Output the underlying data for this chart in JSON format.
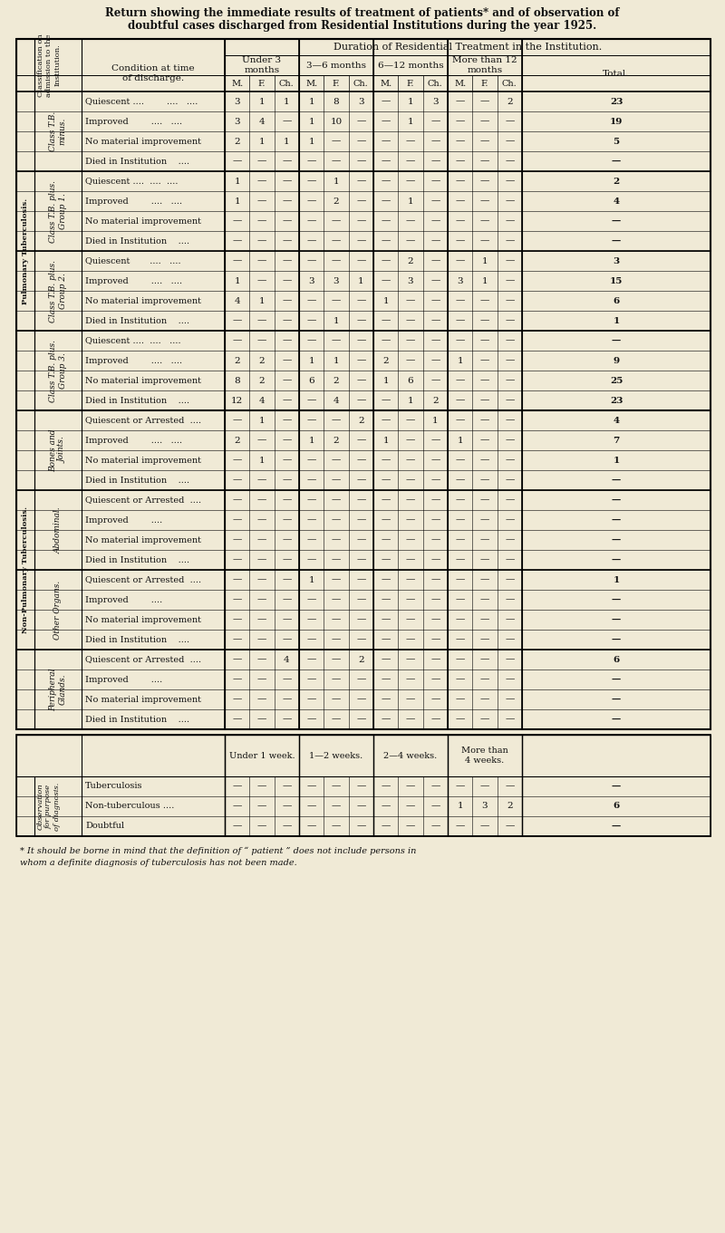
{
  "title_line1": "Return showing the immediate results of treatment of patients* and of observation of",
  "title_line2": "doubtful cases discharged from Residential Institutions during the year 1925.",
  "bg_color": "#f0ead6",
  "figsize": [
    8.0,
    13.61
  ],
  "dpi": 100,
  "sections": [
    {
      "group_label": "Class T.B.\nminus.",
      "rows": [
        {
          "condition": "Quiescent ....        ....   ....",
          "u3_M": "3",
          "u3_F": "1",
          "u3_Ch": "1",
          "r36_M": "1",
          "r36_F": "8",
          "r36_Ch": "3",
          "r612_M": "—",
          "r612_F": "1",
          "r612_Ch": "3",
          "m12_M": "—",
          "m12_F": "—",
          "m12_Ch": "2",
          "total": "23"
        },
        {
          "condition": "Improved        ....   ....",
          "u3_M": "3",
          "u3_F": "4",
          "u3_Ch": "—",
          "r36_M": "1",
          "r36_F": "10",
          "r36_Ch": "—",
          "r612_M": "—",
          "r612_F": "1",
          "r612_Ch": "—",
          "m12_M": "—",
          "m12_F": "—",
          "m12_Ch": "—",
          "total": "19"
        },
        {
          "condition": "No material improvement",
          "u3_M": "2",
          "u3_F": "1",
          "u3_Ch": "1",
          "r36_M": "1",
          "r36_F": "—",
          "r36_Ch": "—",
          "r612_M": "—",
          "r612_F": "—",
          "r612_Ch": "—",
          "m12_M": "—",
          "m12_F": "—",
          "m12_Ch": "—",
          "total": "5"
        },
        {
          "condition": "Died in Institution    ....",
          "u3_M": "—",
          "u3_F": "—",
          "u3_Ch": "—",
          "r36_M": "—",
          "r36_F": "—",
          "r36_Ch": "—",
          "r612_M": "—",
          "r612_F": "—",
          "r612_Ch": "—",
          "m12_M": "—",
          "m12_F": "—",
          "m12_Ch": "—",
          "total": "—"
        }
      ]
    },
    {
      "group_label": "Class T.B. plus.\nGroup 1.",
      "rows": [
        {
          "condition": "Quiescent ....  ....  ....",
          "u3_M": "1",
          "u3_F": "—",
          "u3_Ch": "—",
          "r36_M": "—",
          "r36_F": "1",
          "r36_Ch": "—",
          "r612_M": "—",
          "r612_F": "—",
          "r612_Ch": "—",
          "m12_M": "—",
          "m12_F": "—",
          "m12_Ch": "—",
          "total": "2"
        },
        {
          "condition": "Improved        ....   ....",
          "u3_M": "1",
          "u3_F": "—",
          "u3_Ch": "—",
          "r36_M": "—",
          "r36_F": "2",
          "r36_Ch": "—",
          "r612_M": "—",
          "r612_F": "1",
          "r612_Ch": "—",
          "m12_M": "—",
          "m12_F": "—",
          "m12_Ch": "—",
          "total": "4"
        },
        {
          "condition": "No material improvement",
          "u3_M": "—",
          "u3_F": "—",
          "u3_Ch": "—",
          "r36_M": "—",
          "r36_F": "—",
          "r36_Ch": "—",
          "r612_M": "—",
          "r612_F": "—",
          "r612_Ch": "—",
          "m12_M": "—",
          "m12_F": "—",
          "m12_Ch": "—",
          "total": "—"
        },
        {
          "condition": "Died in Institution    ....",
          "u3_M": "—",
          "u3_F": "—",
          "u3_Ch": "—",
          "r36_M": "—",
          "r36_F": "—",
          "r36_Ch": "—",
          "r612_M": "—",
          "r612_F": "—",
          "r612_Ch": "—",
          "m12_M": "—",
          "m12_F": "—",
          "m12_Ch": "—",
          "total": "—"
        }
      ]
    },
    {
      "group_label": "Class T.B. plus.\nGroup 2.",
      "rows": [
        {
          "condition": "Quiescent       ....   ....",
          "u3_M": "—",
          "u3_F": "—",
          "u3_Ch": "—",
          "r36_M": "—",
          "r36_F": "—",
          "r36_Ch": "—",
          "r612_M": "—",
          "r612_F": "2",
          "r612_Ch": "—",
          "m12_M": "—",
          "m12_F": "1",
          "m12_Ch": "—",
          "total": "3"
        },
        {
          "condition": "Improved        ....   ....",
          "u3_M": "1",
          "u3_F": "—",
          "u3_Ch": "—",
          "r36_M": "3",
          "r36_F": "3",
          "r36_Ch": "1",
          "r612_M": "—",
          "r612_F": "3",
          "r612_Ch": "—",
          "m12_M": "3",
          "m12_F": "1",
          "m12_Ch": "—",
          "total": "15"
        },
        {
          "condition": "No material improvement",
          "u3_M": "4",
          "u3_F": "1",
          "u3_Ch": "—",
          "r36_M": "—",
          "r36_F": "—",
          "r36_Ch": "—",
          "r612_M": "1",
          "r612_F": "—",
          "r612_Ch": "—",
          "m12_M": "—",
          "m12_F": "—",
          "m12_Ch": "—",
          "total": "6"
        },
        {
          "condition": "Died in Institution    ....",
          "u3_M": "—",
          "u3_F": "—",
          "u3_Ch": "—",
          "r36_M": "—",
          "r36_F": "1",
          "r36_Ch": "—",
          "r612_M": "—",
          "r612_F": "—",
          "r612_Ch": "—",
          "m12_M": "—",
          "m12_F": "—",
          "m12_Ch": "—",
          "total": "1"
        }
      ]
    },
    {
      "group_label": "Class T.B. plus.\nGroup 3.",
      "rows": [
        {
          "condition": "Quiescent ....  ....   ....",
          "u3_M": "—",
          "u3_F": "—",
          "u3_Ch": "—",
          "r36_M": "—",
          "r36_F": "—",
          "r36_Ch": "—",
          "r612_M": "—",
          "r612_F": "—",
          "r612_Ch": "—",
          "m12_M": "—",
          "m12_F": "—",
          "m12_Ch": "—",
          "total": "—"
        },
        {
          "condition": "Improved        ....   ....",
          "u3_M": "2",
          "u3_F": "2",
          "u3_Ch": "—",
          "r36_M": "1",
          "r36_F": "1",
          "r36_Ch": "—",
          "r612_M": "2",
          "r612_F": "—",
          "r612_Ch": "—",
          "m12_M": "1",
          "m12_F": "—",
          "m12_Ch": "—",
          "total": "9"
        },
        {
          "condition": "No material improvement",
          "u3_M": "8",
          "u3_F": "2",
          "u3_Ch": "—",
          "r36_M": "6",
          "r36_F": "2",
          "r36_Ch": "—",
          "r612_M": "1",
          "r612_F": "6",
          "r612_Ch": "—",
          "m12_M": "—",
          "m12_F": "—",
          "m12_Ch": "—",
          "total": "25"
        },
        {
          "condition": "Died in Institution    ....",
          "u3_M": "12",
          "u3_F": "4",
          "u3_Ch": "—",
          "r36_M": "—",
          "r36_F": "4",
          "r36_Ch": "—",
          "r612_M": "—",
          "r612_F": "1",
          "r612_Ch": "2",
          "m12_M": "—",
          "m12_F": "—",
          "m12_Ch": "—",
          "total": "23"
        }
      ]
    },
    {
      "group_label": "Bones and\nJoints.",
      "rows": [
        {
          "condition": "Quiescent or Arrested  ....",
          "u3_M": "—",
          "u3_F": "1",
          "u3_Ch": "—",
          "r36_M": "—",
          "r36_F": "—",
          "r36_Ch": "2",
          "r612_M": "—",
          "r612_F": "—",
          "r612_Ch": "1",
          "m12_M": "—",
          "m12_F": "—",
          "m12_Ch": "—",
          "total": "4"
        },
        {
          "condition": "Improved        ....   ....",
          "u3_M": "2",
          "u3_F": "—",
          "u3_Ch": "—",
          "r36_M": "1",
          "r36_F": "2",
          "r36_Ch": "—",
          "r612_M": "1",
          "r612_F": "—",
          "r612_Ch": "—",
          "m12_M": "1",
          "m12_F": "—",
          "m12_Ch": "—",
          "total": "7"
        },
        {
          "condition": "No material improvement",
          "u3_M": "—",
          "u3_F": "1",
          "u3_Ch": "—",
          "r36_M": "—",
          "r36_F": "—",
          "r36_Ch": "—",
          "r612_M": "—",
          "r612_F": "—",
          "r612_Ch": "—",
          "m12_M": "—",
          "m12_F": "—",
          "m12_Ch": "—",
          "total": "1"
        },
        {
          "condition": "Died in Institution    ....",
          "u3_M": "—",
          "u3_F": "—",
          "u3_Ch": "—",
          "r36_M": "—",
          "r36_F": "—",
          "r36_Ch": "—",
          "r612_M": "—",
          "r612_F": "—",
          "r612_Ch": "—",
          "m12_M": "—",
          "m12_F": "—",
          "m12_Ch": "—",
          "total": "—"
        }
      ]
    },
    {
      "group_label": "Abdominal.",
      "rows": [
        {
          "condition": "Quiescent or Arrested  ....",
          "u3_M": "—",
          "u3_F": "—",
          "u3_Ch": "—",
          "r36_M": "—",
          "r36_F": "—",
          "r36_Ch": "—",
          "r612_M": "—",
          "r612_F": "—",
          "r612_Ch": "—",
          "m12_M": "—",
          "m12_F": "—",
          "m12_Ch": "—",
          "total": "—"
        },
        {
          "condition": "Improved        ....",
          "u3_M": "—",
          "u3_F": "—",
          "u3_Ch": "—",
          "r36_M": "—",
          "r36_F": "—",
          "r36_Ch": "—",
          "r612_M": "—",
          "r612_F": "—",
          "r612_Ch": "—",
          "m12_M": "—",
          "m12_F": "—",
          "m12_Ch": "—",
          "total": "—"
        },
        {
          "condition": "No material improvement",
          "u3_M": "—",
          "u3_F": "—",
          "u3_Ch": "—",
          "r36_M": "—",
          "r36_F": "—",
          "r36_Ch": "—",
          "r612_M": "—",
          "r612_F": "—",
          "r612_Ch": "—",
          "m12_M": "—",
          "m12_F": "—",
          "m12_Ch": "—",
          "total": "—"
        },
        {
          "condition": "Died in Institution    ....",
          "u3_M": "—",
          "u3_F": "—",
          "u3_Ch": "—",
          "r36_M": "—",
          "r36_F": "—",
          "r36_Ch": "—",
          "r612_M": "—",
          "r612_F": "—",
          "r612_Ch": "—",
          "m12_M": "—",
          "m12_F": "—",
          "m12_Ch": "—",
          "total": "—"
        }
      ]
    },
    {
      "group_label": "Other Organs.",
      "rows": [
        {
          "condition": "Quiescent or Arrested  ....",
          "u3_M": "—",
          "u3_F": "—",
          "u3_Ch": "—",
          "r36_M": "1",
          "r36_F": "—",
          "r36_Ch": "—",
          "r612_M": "—",
          "r612_F": "—",
          "r612_Ch": "—",
          "m12_M": "—",
          "m12_F": "—",
          "m12_Ch": "—",
          "total": "1"
        },
        {
          "condition": "Improved        ....",
          "u3_M": "—",
          "u3_F": "—",
          "u3_Ch": "—",
          "r36_M": "—",
          "r36_F": "—",
          "r36_Ch": "—",
          "r612_M": "—",
          "r612_F": "—",
          "r612_Ch": "—",
          "m12_M": "—",
          "m12_F": "—",
          "m12_Ch": "—",
          "total": "—"
        },
        {
          "condition": "No material improvement",
          "u3_M": "—",
          "u3_F": "—",
          "u3_Ch": "—",
          "r36_M": "—",
          "r36_F": "—",
          "r36_Ch": "—",
          "r612_M": "—",
          "r612_F": "—",
          "r612_Ch": "—",
          "m12_M": "—",
          "m12_F": "—",
          "m12_Ch": "—",
          "total": "—"
        },
        {
          "condition": "Died in Institution    ....",
          "u3_M": "—",
          "u3_F": "—",
          "u3_Ch": "—",
          "r36_M": "—",
          "r36_F": "—",
          "r36_Ch": "—",
          "r612_M": "—",
          "r612_F": "—",
          "r612_Ch": "—",
          "m12_M": "—",
          "m12_F": "—",
          "m12_Ch": "—",
          "total": "—"
        }
      ]
    },
    {
      "group_label": "Peripheral\nGlands.",
      "rows": [
        {
          "condition": "Quiescent or Arrested  ....",
          "u3_M": "—",
          "u3_F": "—",
          "u3_Ch": "4",
          "r36_M": "—",
          "r36_F": "—",
          "r36_Ch": "2",
          "r612_M": "—",
          "r612_F": "—",
          "r612_Ch": "—",
          "m12_M": "—",
          "m12_F": "—",
          "m12_Ch": "—",
          "total": "6"
        },
        {
          "condition": "Improved        ....",
          "u3_M": "—",
          "u3_F": "—",
          "u3_Ch": "—",
          "r36_M": "—",
          "r36_F": "—",
          "r36_Ch": "—",
          "r612_M": "—",
          "r612_F": "—",
          "r612_Ch": "—",
          "m12_M": "—",
          "m12_F": "—",
          "m12_Ch": "—",
          "total": "—"
        },
        {
          "condition": "No material improvement",
          "u3_M": "—",
          "u3_F": "—",
          "u3_Ch": "—",
          "r36_M": "—",
          "r36_F": "—",
          "r36_Ch": "—",
          "r612_M": "—",
          "r612_F": "—",
          "r612_Ch": "—",
          "m12_M": "—",
          "m12_F": "—",
          "m12_Ch": "—",
          "total": "—"
        },
        {
          "condition": "Died in Institution    ....",
          "u3_M": "—",
          "u3_F": "—",
          "u3_Ch": "—",
          "r36_M": "—",
          "r36_F": "—",
          "r36_Ch": "—",
          "r612_M": "—",
          "r612_F": "—",
          "r612_Ch": "—",
          "m12_M": "—",
          "m12_F": "—",
          "m12_Ch": "—",
          "total": "—"
        }
      ]
    }
  ],
  "obs_section": {
    "rows": [
      {
        "type": "Tuberculosis",
        "u1w_M": "—",
        "u1w_F": "—",
        "u1w_Ch": "—",
        "r12w_M": "—",
        "r12w_F": "—",
        "r12w_Ch": "—",
        "r24w_M": "—",
        "r24w_F": "—",
        "r24w_Ch": "—",
        "m4w_M": "—",
        "m4w_F": "—",
        "m4w_Ch": "—",
        "total": "—"
      },
      {
        "type": "Non-tuberculous ....",
        "u1w_M": "—",
        "u1w_F": "—",
        "u1w_Ch": "—",
        "r12w_M": "—",
        "r12w_F": "—",
        "r12w_Ch": "—",
        "r24w_M": "—",
        "r24w_F": "—",
        "r24w_Ch": "—",
        "m4w_M": "1",
        "m4w_F": "3",
        "m4w_Ch": "2",
        "total": "6"
      },
      {
        "type": "Doubtful",
        "u1w_M": "—",
        "u1w_F": "—",
        "u1w_Ch": "—",
        "r12w_M": "—",
        "r12w_F": "—",
        "r12w_Ch": "—",
        "r24w_M": "—",
        "r24w_F": "—",
        "r24w_Ch": "—",
        "m4w_M": "—",
        "m4w_F": "—",
        "m4w_Ch": "—",
        "total": "—"
      }
    ]
  },
  "footnote_line1": "* It should be borne in mind that the definition of “ patient ” does not include persons in",
  "footnote_line2": "whom a definite diagnosis of tuberculosis has not been made."
}
